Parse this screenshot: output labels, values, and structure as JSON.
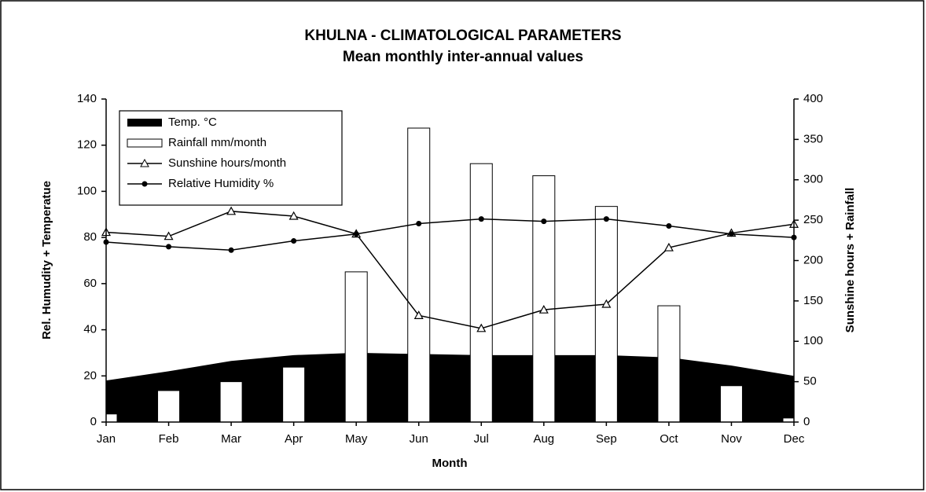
{
  "chart_data": {
    "type": "combo",
    "title": "KHULNA - CLIMATOLOGICAL PARAMETERS",
    "subtitle": "Mean monthly inter-annual values",
    "x_label": "Month",
    "y_label": "Rel. Humudity + Temperatue",
    "y2_label": "Sunshine hours + Rainfall",
    "categories": [
      "Jan",
      "Feb",
      "Mar",
      "Apr",
      "May",
      "Jun",
      "Jul",
      "Aug",
      "Sep",
      "Oct",
      "Nov",
      "Dec"
    ],
    "ylim": [
      0,
      140
    ],
    "yticks": [
      0,
      20,
      40,
      60,
      80,
      100,
      120,
      140
    ],
    "y2lim": [
      0,
      400
    ],
    "y2ticks": [
      0,
      50,
      100,
      150,
      200,
      250,
      300,
      350,
      400
    ],
    "legend": "top-left",
    "series": [
      {
        "name": "Temp. °C",
        "type": "area",
        "axis": "y",
        "color": "#000000",
        "values": [
          18,
          22,
          26.5,
          29,
          30,
          29.5,
          29,
          29,
          29,
          28,
          24.5,
          20
        ]
      },
      {
        "name": "Rainfall mm/month",
        "type": "bar",
        "axis": "y2",
        "color": "#ffffff",
        "values": [
          10,
          39,
          50,
          68,
          186,
          364,
          320,
          305,
          267,
          144,
          45,
          5
        ]
      },
      {
        "name": "Sunshine hours/month",
        "type": "line",
        "axis": "y2",
        "color": "#000000",
        "marker": "triangle",
        "values": [
          235,
          230,
          261,
          255,
          233,
          132,
          116,
          139,
          146,
          216,
          234,
          245
        ]
      },
      {
        "name": "Relative Humidity %",
        "type": "line",
        "axis": "y",
        "color": "#000000",
        "marker": "dot",
        "values": [
          78,
          76,
          74.5,
          78.5,
          81.5,
          86,
          88,
          87,
          88,
          85,
          81.5,
          80
        ]
      }
    ]
  }
}
